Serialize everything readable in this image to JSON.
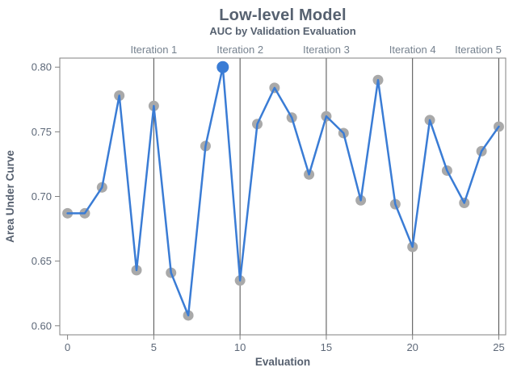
{
  "header": {
    "title": "Low-level Model",
    "subtitle": "AUC by Validation Evaluation"
  },
  "chart_data": {
    "type": "line",
    "title": "Low-level Model",
    "subtitle": "AUC by Validation Evaluation",
    "xlabel": "Evaluation",
    "ylabel": "Area Under Curve",
    "x": [
      0,
      1,
      2,
      3,
      4,
      5,
      6,
      7,
      8,
      9,
      10,
      11,
      12,
      13,
      14,
      15,
      16,
      17,
      18,
      19,
      20,
      21,
      22,
      23,
      24,
      25
    ],
    "values": [
      0.687,
      0.687,
      0.707,
      0.778,
      0.643,
      0.77,
      0.641,
      0.608,
      0.739,
      0.8,
      0.635,
      0.756,
      0.784,
      0.761,
      0.717,
      0.762,
      0.749,
      0.697,
      0.79,
      0.694,
      0.661,
      0.759,
      0.72,
      0.695,
      0.735,
      0.754
    ],
    "highlight_index": 9,
    "x_ticks": [
      "0",
      "5",
      "10",
      "15",
      "20",
      "25"
    ],
    "x_tick_values": [
      0,
      5,
      10,
      15,
      20,
      25
    ],
    "y_ticks": [
      "0.80",
      "0.75",
      "0.70",
      "0.65",
      "0.60"
    ],
    "y_tick_values": [
      0.8,
      0.75,
      0.7,
      0.65,
      0.6
    ],
    "xlim": [
      -0.45,
      25.4
    ],
    "ylim": [
      0.593,
      0.807
    ],
    "grid": false,
    "legend": "none",
    "reference_lines_x": [
      5,
      10,
      15,
      20,
      25
    ],
    "iteration_labels": [
      {
        "label": "Iteration 1",
        "x": 5
      },
      {
        "label": "Iteration 2",
        "x": 10
      },
      {
        "label": "Iteration 3",
        "x": 15
      },
      {
        "label": "Iteration 4",
        "x": 20
      },
      {
        "label": "Iteration 5",
        "x": 25
      }
    ],
    "colors": {
      "line": "#3a7cd5",
      "marker": "#a9a9a9",
      "highlight_marker": "#3a7cd5",
      "reference_line": "#4a4a4a",
      "plot_border": "#808080",
      "tick_mark": "#808080",
      "title_text": "#566170",
      "tick_text": "#5d6878",
      "axis_title_text": "#555f6e",
      "iteration_text": "#76828f",
      "background": "#ffffff"
    }
  }
}
